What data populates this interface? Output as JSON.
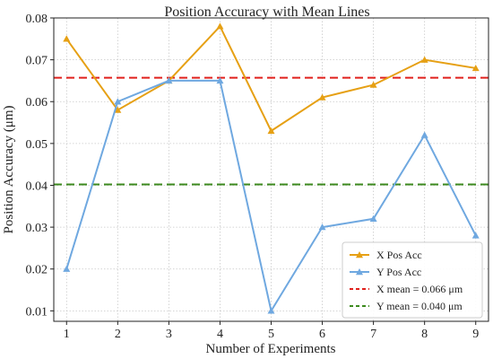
{
  "chart_data": {
    "type": "line",
    "title": "Position Accuracy with Mean Lines",
    "xlabel": "Number of Experiments",
    "ylabel": "Position Accuracy (μm)",
    "x": [
      1,
      2,
      3,
      4,
      5,
      6,
      7,
      8,
      9
    ],
    "xlim": [
      0.75,
      9.25
    ],
    "ylim": [
      0.0075,
      0.08
    ],
    "yticks": [
      "0.01",
      "0.02",
      "0.03",
      "0.04",
      "0.05",
      "0.06",
      "0.07",
      "0.08"
    ],
    "xticks": [
      "1",
      "2",
      "3",
      "4",
      "5",
      "6",
      "7",
      "8",
      "9"
    ],
    "grid": true,
    "legend_position": "bottom-right",
    "series": [
      {
        "name": "X Pos Acc",
        "color": "#e6a014",
        "marker": "triangle",
        "values": [
          0.075,
          0.058,
          0.065,
          0.078,
          0.053,
          0.061,
          0.064,
          0.07,
          0.068
        ]
      },
      {
        "name": "Y Pos Acc",
        "color": "#6fa8e0",
        "marker": "triangle",
        "values": [
          0.02,
          0.06,
          0.065,
          0.065,
          0.01,
          0.03,
          0.032,
          0.052,
          0.028
        ]
      }
    ],
    "mean_lines": [
      {
        "name": "X mean = 0.066 μm",
        "value": 0.0657,
        "color": "#e0211c"
      },
      {
        "name": "Y mean = 0.040 μm",
        "value": 0.0402,
        "color": "#3c8a1e"
      }
    ]
  }
}
